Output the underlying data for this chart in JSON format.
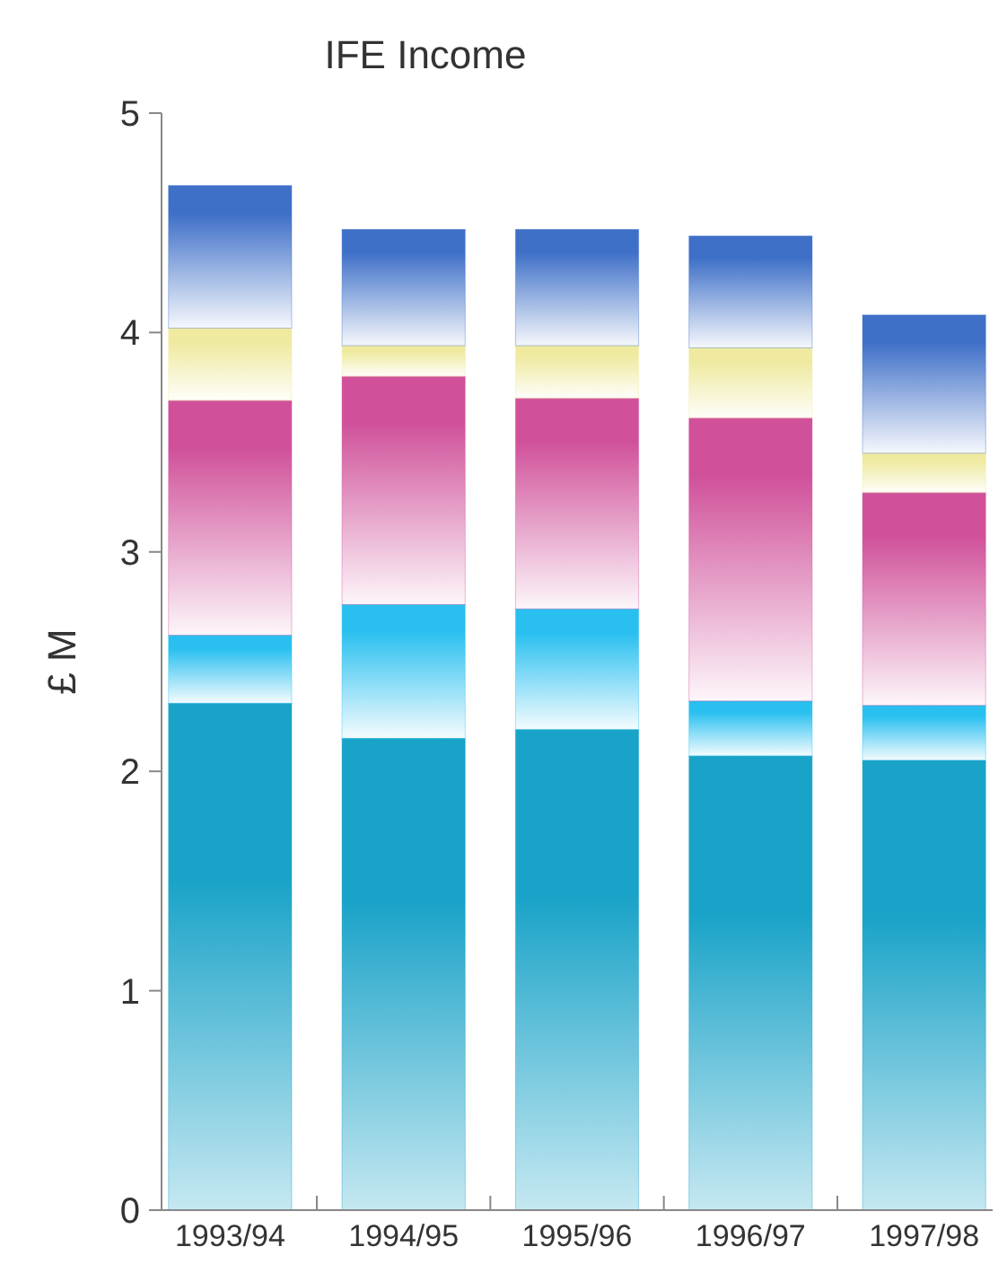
{
  "chart_data": {
    "type": "bar",
    "stacked": true,
    "title": "IFE Income",
    "ylabel": "£ M",
    "categories": [
      "1993/94",
      "1994/95",
      "1995/96",
      "1996/97",
      "1997/98"
    ],
    "ylim": [
      0,
      5
    ],
    "yticks": [
      0,
      1,
      2,
      3,
      4,
      5
    ],
    "grid": false,
    "series": [
      {
        "color": "#1aa3c8",
        "values": [
          2.31,
          2.15,
          2.19,
          2.07,
          2.05
        ]
      },
      {
        "color": "#29c0f0",
        "values": [
          0.31,
          0.61,
          0.55,
          0.25,
          0.25
        ]
      },
      {
        "color": "#d0509a",
        "values": [
          1.07,
          1.04,
          0.96,
          1.29,
          0.97
        ]
      },
      {
        "color": "#efeaa0",
        "values": [
          0.33,
          0.14,
          0.24,
          0.32,
          0.18
        ]
      },
      {
        "color": "#3f70c8",
        "values": [
          0.65,
          0.53,
          0.53,
          0.51,
          0.63
        ]
      }
    ]
  }
}
